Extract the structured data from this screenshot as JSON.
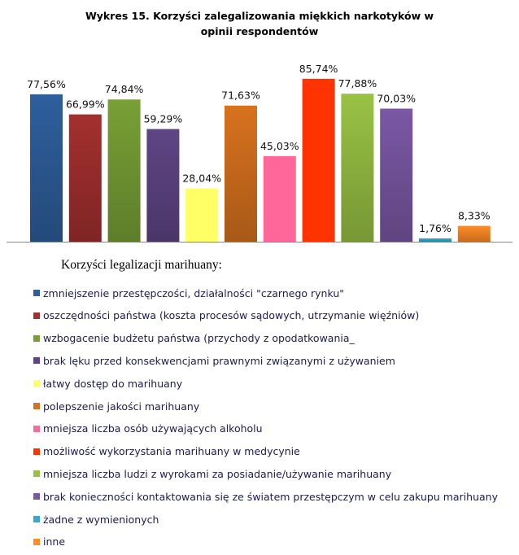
{
  "chart_data": {
    "type": "bar",
    "title": "Wykres 15. Korzyści zalegalizowania miękkich narkotyków w opinii respondentów",
    "legend_title": "Korzyści legalizacji marihuany:",
    "legend_position": "bottom",
    "grid": false,
    "ylim": [
      0,
      100
    ],
    "categories": [
      "zmniejszenie przestępczości, działalności \"czarnego rynku\"",
      "oszczędności państwa (koszta procesów sądowych, utrzymanie więźniów)",
      "wzbogacenie budżetu państwa (przychody z opodatkowania_",
      "brak lęku przed konsekwencjami prawnymi związanymi z używaniem",
      "łatwy dostęp do marihuany",
      "polepszenie jakości marihuany",
      "mniejsza liczba osób używających alkoholu",
      "możliwość wykorzystania marihuany w medycynie",
      "mniejsza liczba ludzi z wyrokami za posiadanie/używanie marihuany",
      "brak konieczności kontaktowania się ze światem przestępczym w celu zakupu marihuany",
      "żadne z wymienionych",
      "inne"
    ],
    "values": [
      77.56,
      66.99,
      74.84,
      59.29,
      28.04,
      71.63,
      45.03,
      85.74,
      77.88,
      70.03,
      1.76,
      8.33
    ],
    "data_labels": [
      "77,56%",
      "66,99%",
      "74,84%",
      "59,29%",
      "28,04%",
      "71,63%",
      "45,03%",
      "85,74%",
      "77,88%",
      "70,03%",
      "1,76%",
      "8,33%"
    ],
    "colors": [
      "#2e5f9c",
      "#a3302e",
      "#78a036",
      "#5f4585",
      "#ffff66",
      "#d8721e",
      "#ff6699",
      "#ff3300",
      "#99c244",
      "#7a58a4",
      "#33aacc",
      "#ff8c26"
    ]
  }
}
